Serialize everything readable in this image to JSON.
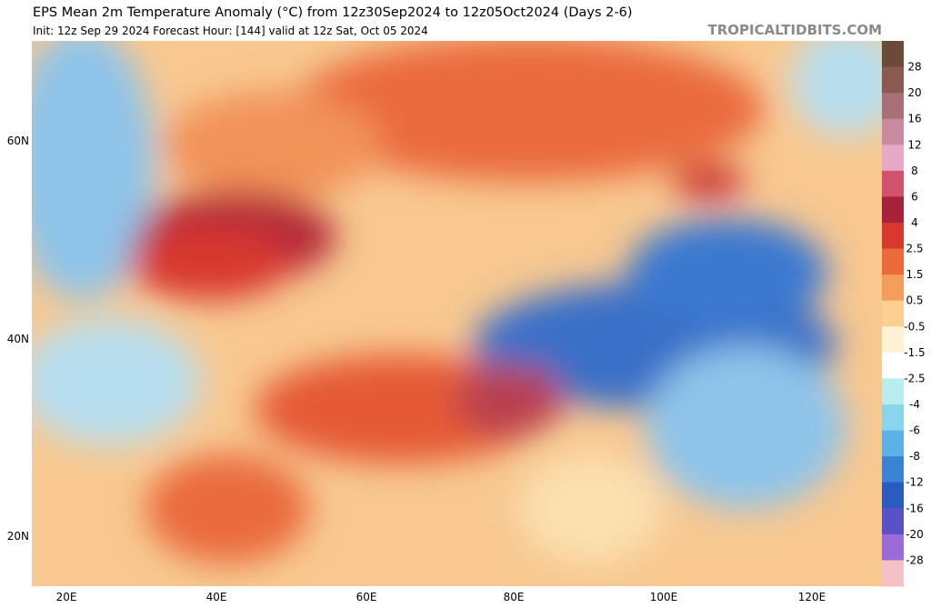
{
  "header": {
    "title": "EPS Mean 2m Temperature Anomaly (°C) from 12z30Sep2024 to 12z05Oct2024 (Days 2-6)",
    "subtitle": "Init: 12z Sep 29 2024   Forecast Hour: [144]   valid at 12z Sat, Oct 05 2024",
    "site": "TROPICALTIDBITS.COM"
  },
  "map": {
    "lat_labels": [
      "60N",
      "40N",
      "20N"
    ],
    "lon_labels": [
      "20E",
      "40E",
      "60E",
      "80E",
      "100E",
      "120E"
    ]
  },
  "colorbar": {
    "labels": [
      28,
      20,
      16,
      12,
      8,
      6,
      4,
      2.5,
      1.5,
      0.5,
      -0.5,
      -1.5,
      -2.5,
      -4,
      -6,
      -8,
      -12,
      -16,
      -20,
      -28
    ],
    "colors": [
      "#6b4a3a",
      "#8a5a50",
      "#a86f76",
      "#c98aa0",
      "#e6a8c4",
      "#d2536e",
      "#a8213a",
      "#d8392e",
      "#ec6a3c",
      "#f59e5c",
      "#fbd090",
      "#fdf3d4",
      "#ffffff",
      "#b8ecee",
      "#8ad4ec",
      "#5cb2e6",
      "#3a82d6",
      "#2a5bc0",
      "#5a50c8",
      "#9a6ad6",
      "#f5c0c6"
    ]
  }
}
